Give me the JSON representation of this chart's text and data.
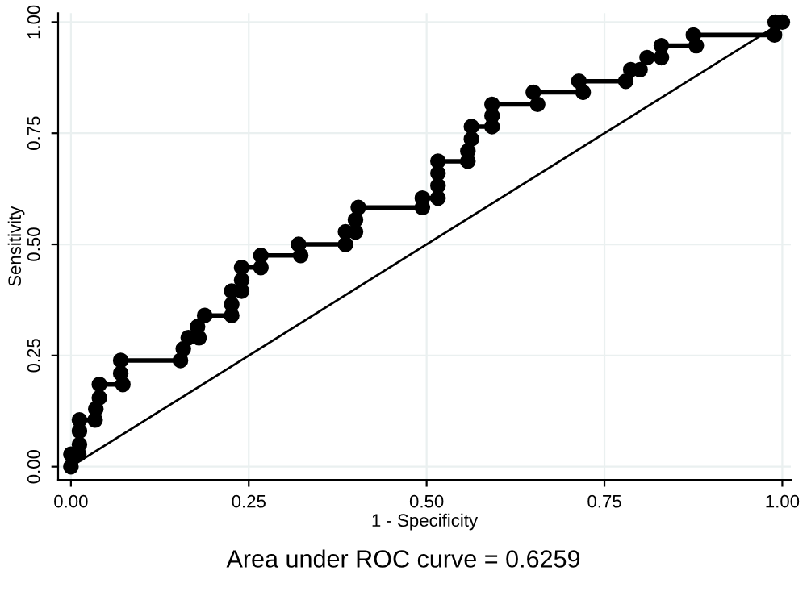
{
  "chart_data": {
    "type": "line",
    "xlabel": "1 - Specificity",
    "ylabel": "Sensitivity",
    "xlim": [
      -0.018,
      1.012
    ],
    "ylim": [
      -0.03,
      1.02
    ],
    "xticks": [
      {
        "value": 0,
        "label": "0.00"
      },
      {
        "value": 0.25,
        "label": "0.25"
      },
      {
        "value": 0.5,
        "label": "0.50"
      },
      {
        "value": 0.75,
        "label": "0.75"
      },
      {
        "value": 1,
        "label": "1.00"
      }
    ],
    "yticks": [
      {
        "value": 0,
        "label": "0.00"
      },
      {
        "value": 0.25,
        "label": "0.25"
      },
      {
        "value": 0.5,
        "label": "0.50"
      },
      {
        "value": 0.75,
        "label": "0.75"
      },
      {
        "value": 1,
        "label": "1.00"
      }
    ],
    "grid": true,
    "legend": false,
    "series": [
      {
        "color": "#000000",
        "marker": "circle",
        "x": [
          0,
          0,
          0.011,
          0.012,
          0.012,
          0.012,
          0.034,
          0.035,
          0.04,
          0.04,
          0.073,
          0.07,
          0.07,
          0.154,
          0.158,
          0.165,
          0.18,
          0.178,
          0.188,
          0.226,
          0.226,
          0.226,
          0.24,
          0.24,
          0.24,
          0.267,
          0.267,
          0.323,
          0.32,
          0.386,
          0.386,
          0.4,
          0.4,
          0.404,
          0.494,
          0.494,
          0.516,
          0.516,
          0.516,
          0.516,
          0.558,
          0.558,
          0.563,
          0.563,
          0.592,
          0.592,
          0.592,
          0.656,
          0.65,
          0.72,
          0.714,
          0.78,
          0.787,
          0.8,
          0.81,
          0.83,
          0.83,
          0.879,
          0.875,
          0.989,
          0.99,
          1.0
        ],
        "values": [
          0,
          0.028,
          0.028,
          0.05,
          0.08,
          0.105,
          0.105,
          0.13,
          0.155,
          0.185,
          0.185,
          0.21,
          0.239,
          0.239,
          0.265,
          0.29,
          0.29,
          0.315,
          0.34,
          0.34,
          0.365,
          0.395,
          0.395,
          0.42,
          0.448,
          0.448,
          0.475,
          0.475,
          0.5,
          0.5,
          0.528,
          0.528,
          0.555,
          0.583,
          0.583,
          0.604,
          0.604,
          0.632,
          0.66,
          0.687,
          0.687,
          0.71,
          0.737,
          0.765,
          0.765,
          0.789,
          0.815,
          0.815,
          0.842,
          0.842,
          0.867,
          0.867,
          0.893,
          0.893,
          0.92,
          0.92,
          0.947,
          0.947,
          0.971,
          0.971,
          1.0,
          1.0
        ]
      },
      {
        "color": "#000000",
        "marker": "none",
        "x": [
          0,
          1
        ],
        "values": [
          0,
          1
        ]
      }
    ],
    "annotations": [
      "Area under ROC curve = 0.6259"
    ]
  }
}
